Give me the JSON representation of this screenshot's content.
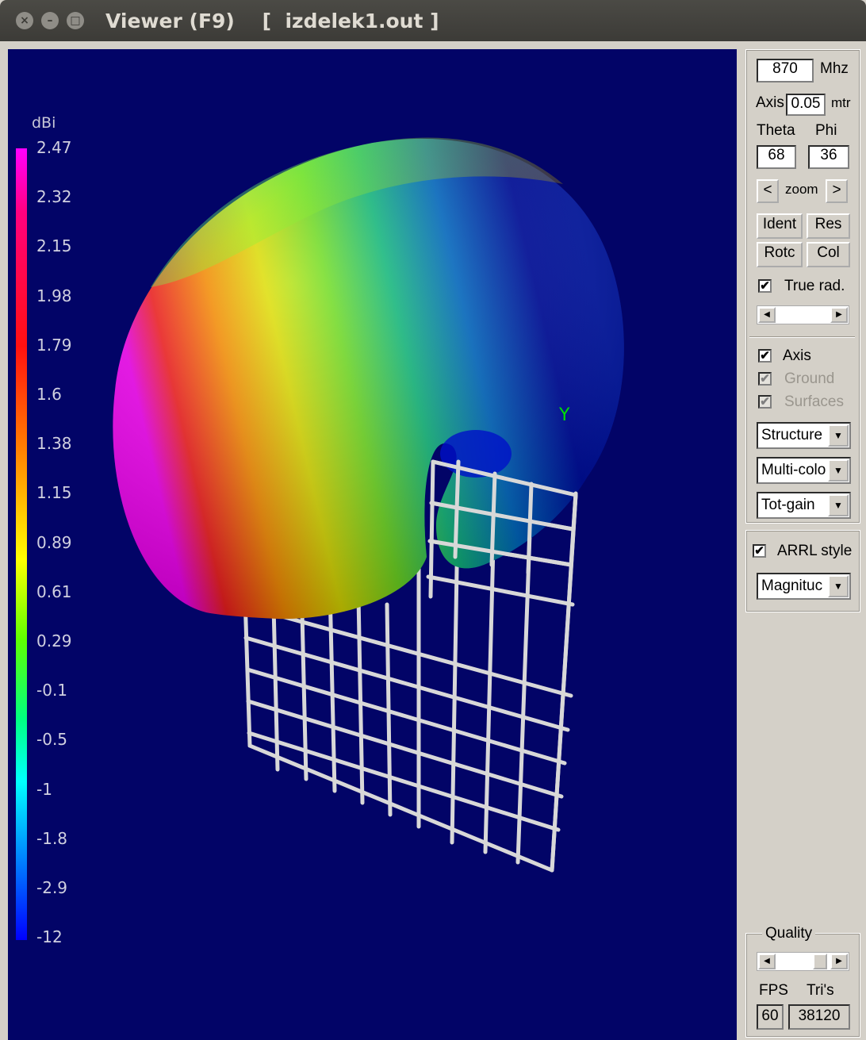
{
  "window": {
    "title": "Viewer (F9)    [  izdelek1.out ]"
  },
  "viewport": {
    "background": "#020467",
    "scale_unit": "dBi",
    "scale_labels": [
      "2.47",
      "2.32",
      "2.15",
      "1.98",
      "1.79",
      "1.6",
      "1.38",
      "1.15",
      "0.89",
      "0.61",
      "0.29",
      "-0.1",
      "-0.5",
      "-1",
      "-1.8",
      "-2.9",
      "-12"
    ],
    "axis_label": "Y"
  },
  "panel": {
    "freq_value": "870",
    "freq_unit": "Mhz",
    "axis_label": "Axis",
    "axis_value": "0.05",
    "axis_unit": "mtr",
    "theta_label": "Theta",
    "phi_label": "Phi",
    "theta_value": "68",
    "phi_value": "36",
    "zoom_left": "<",
    "zoom_label": "zoom",
    "zoom_right": ">",
    "btn_ident": "Ident",
    "btn_res": "Res",
    "btn_rotc": "Rotc",
    "btn_col": "Col",
    "true_rad_label": "True rad.",
    "true_rad_checked": true,
    "axis_chk_label": "Axis",
    "ground_label": "Ground",
    "surfaces_label": "Surfaces",
    "combo_structure": "Structure",
    "combo_color": "Multi-colo",
    "combo_gain": "Tot-gain",
    "arrl_label": "ARRL style",
    "combo_magnitude": "Magnituc",
    "quality_label": "Quality",
    "fps_label": "FPS",
    "tris_label": "Tri's",
    "fps_value": "60",
    "tris_value": "38120",
    "check_mark": "✔"
  }
}
